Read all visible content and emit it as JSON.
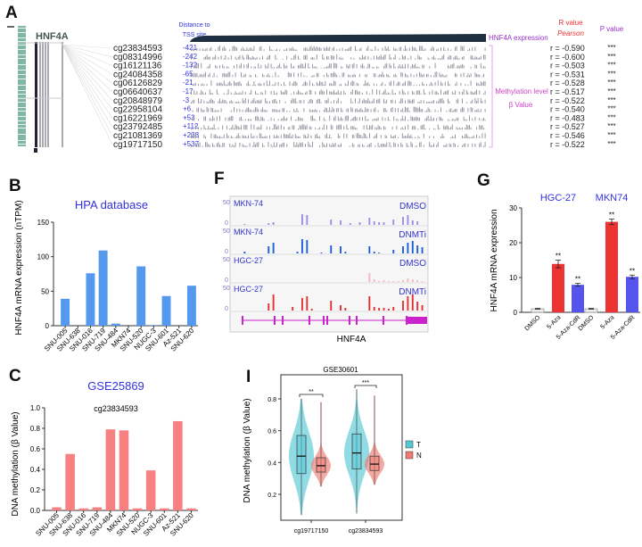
{
  "panel_labels": {
    "a": "A",
    "b": "B",
    "c": "C",
    "f": "F",
    "g": "G",
    "i": "I"
  },
  "panel_a": {
    "gene": "HNF4A",
    "distance_header": [
      "Distance to",
      "TSS site"
    ],
    "expression_label": "HNF4A expression",
    "methylation_label": [
      "Methylation level",
      "β Value"
    ],
    "r_header": [
      "R value",
      "Pearson"
    ],
    "p_header": "P value",
    "colors": {
      "header": "#9933cc",
      "r": "#ee3333",
      "distance": "#3333dd",
      "bracket": "#e58ae5"
    },
    "probes": [
      {
        "id": "cg23834593",
        "distance": "-421",
        "r": "r = -0.590",
        "p": "***"
      },
      {
        "id": "cg08314996",
        "distance": "-242",
        "r": "r = -0.600",
        "p": "***"
      },
      {
        "id": "cg16121136",
        "distance": "-132",
        "r": "r = -0.503",
        "p": "***"
      },
      {
        "id": "cg24084358",
        "distance": "-65",
        "r": "r = -0.531",
        "p": "***"
      },
      {
        "id": "cg06126829",
        "distance": "-21",
        "r": "r = -0.528",
        "p": "***"
      },
      {
        "id": "cg06640637",
        "distance": "-17",
        "r": "r = -0.517",
        "p": "***"
      },
      {
        "id": "cg20848979",
        "distance": "-3",
        "r": "r = -0.522",
        "p": "***"
      },
      {
        "id": "cg22958104",
        "distance": "+6",
        "r": "r = -0.540",
        "p": "***"
      },
      {
        "id": "cg16221969",
        "distance": "+53",
        "r": "r = -0.483",
        "p": "***"
      },
      {
        "id": "cg23792485",
        "distance": "+112",
        "r": "r = -0.527",
        "p": "***"
      },
      {
        "id": "cg21081369",
        "distance": "+238",
        "r": "r = -0.546",
        "p": "***"
      },
      {
        "id": "cg19717150",
        "distance": "+537",
        "r": "r = -0.522",
        "p": "***"
      }
    ]
  },
  "chart_data": [
    {
      "id": "B",
      "type": "bar",
      "title": "HPA database",
      "xlabel": "",
      "ylabel": "HNF4A mRNA expression (nTPM)",
      "ylim": [
        0,
        150
      ],
      "yticks": [
        0,
        50,
        100,
        150
      ],
      "color": "#5599ee",
      "categories": [
        "SNU-005",
        "SNU-638",
        "SNU-016",
        "SNU-719",
        "SNU-484",
        "MKN74",
        "SNU-520",
        "NUGC-3",
        "SNU-601",
        "Az-521",
        "SNU-620"
      ],
      "values": [
        39,
        0,
        76,
        109,
        3,
        0,
        86,
        1,
        43,
        0,
        58
      ]
    },
    {
      "id": "C",
      "type": "bar",
      "title": "GSE25869",
      "subtitle": "cg23834593",
      "xlabel": "",
      "ylabel": "DNA methylation (β Value)",
      "ylim": [
        0,
        1.0
      ],
      "yticks": [
        "0.0",
        "0.2",
        "0.4",
        "0.6",
        "0.8",
        "1.0"
      ],
      "color": "#f78080",
      "categories": [
        "SNU-005",
        "SNU-638",
        "SNU-016",
        "SNU-719",
        "SNU-484",
        "MKN74",
        "SNU-520",
        "NUGC-3",
        "SNU-601",
        "Az-521",
        "SNU-620"
      ],
      "values": [
        0.03,
        0.55,
        0.02,
        0.03,
        0.79,
        0.78,
        0.02,
        0.39,
        0.02,
        0.87,
        0.02
      ]
    },
    {
      "id": "F",
      "type": "area",
      "xlabel": "HNF4A",
      "ymax_label": "50",
      "ymin_label": "0",
      "tracks": [
        {
          "cell": "MKN-74",
          "treatment": "DMSO",
          "color": "#9a8fe8",
          "signal": [
            0,
            1,
            0,
            0,
            0,
            0,
            2,
            3,
            0,
            0,
            0,
            0,
            0,
            12,
            11,
            0,
            0,
            0,
            0,
            6,
            0,
            5,
            0,
            2,
            0,
            3,
            0,
            8,
            4,
            3,
            3,
            0,
            6,
            0,
            9,
            11,
            5,
            4,
            0
          ]
        },
        {
          "cell": "MKN-74",
          "treatment": "DNMTi",
          "color": "#1f5fd6",
          "signal": [
            0,
            2,
            0,
            0,
            0,
            0,
            8,
            12,
            0,
            0,
            0,
            0,
            2,
            16,
            15,
            0,
            0,
            1,
            0,
            9,
            0,
            8,
            2,
            0,
            0,
            0,
            0,
            8,
            2,
            1,
            0,
            0,
            4,
            0,
            8,
            12,
            14,
            9,
            7
          ]
        },
        {
          "cell": "HGC-27",
          "treatment": "DMSO",
          "color": "#f3b7bf",
          "signal": [
            0,
            0,
            0,
            0,
            0,
            0,
            0,
            0,
            0,
            0,
            0,
            0,
            0,
            0,
            0,
            0,
            0,
            0,
            0,
            0,
            0,
            0,
            0,
            0,
            0,
            0,
            0,
            10,
            3,
            1,
            2,
            1,
            1,
            1,
            2,
            4,
            3,
            2,
            1
          ]
        },
        {
          "cell": "HGC-27",
          "treatment": "DNMTi",
          "color": "#e53030",
          "signal": [
            0,
            0,
            0,
            0,
            0,
            0,
            8,
            18,
            0,
            0,
            0,
            4,
            0,
            14,
            16,
            2,
            0,
            0,
            0,
            11,
            0,
            6,
            3,
            0,
            0,
            0,
            0,
            16,
            4,
            3,
            3,
            2,
            4,
            0,
            11,
            16,
            18,
            10,
            6
          ]
        }
      ]
    },
    {
      "id": "G",
      "type": "bar",
      "ylabel": "HNF4A mRNA expression",
      "ylim": [
        0,
        30
      ],
      "yticks": [
        0,
        10,
        20,
        30
      ],
      "groups": [
        "HGC-27",
        "MKN74"
      ],
      "categories": [
        "DMSO",
        "5-Aza",
        "5-Aza-CdR"
      ],
      "colors": [
        "#eeeeee",
        "#ee3333",
        "#5555ee"
      ],
      "series": [
        {
          "group": "HGC-27",
          "values": [
            1,
            13.9,
            7.9
          ],
          "errors": [
            0.1,
            1.1,
            0.4
          ],
          "significance": [
            "",
            "**",
            "**"
          ]
        },
        {
          "group": "MKN74",
          "values": [
            1,
            26,
            10.2
          ],
          "errors": [
            0.1,
            0.8,
            0.5
          ],
          "significance": [
            "",
            "**",
            "**"
          ]
        }
      ]
    },
    {
      "id": "I",
      "type": "violin",
      "title": "GSE30601",
      "ylabel": "DNA methylation (β Value)",
      "yticks": [
        "0.2",
        "0.4",
        "0.6",
        "0.8"
      ],
      "legend": [
        {
          "name": "T",
          "color": "#55c8d6"
        },
        {
          "name": "N",
          "color": "#ee7a70"
        }
      ],
      "legend_position": "right",
      "categories": [
        "cg19717150",
        "cg23834593"
      ],
      "significance": [
        "**",
        "***"
      ],
      "groups": [
        {
          "probe": "cg19717150",
          "T": {
            "min": 0.07,
            "q1": 0.33,
            "median": 0.44,
            "q3": 0.57,
            "max": 0.8
          },
          "N": {
            "min": 0.25,
            "q1": 0.34,
            "median": 0.38,
            "q3": 0.43,
            "max": 0.78
          }
        },
        {
          "probe": "cg23834593",
          "T": {
            "min": 0.08,
            "q1": 0.36,
            "median": 0.46,
            "q3": 0.58,
            "max": 0.86
          },
          "N": {
            "min": 0.26,
            "q1": 0.35,
            "median": 0.39,
            "q3": 0.44,
            "max": 0.82
          }
        }
      ]
    }
  ]
}
